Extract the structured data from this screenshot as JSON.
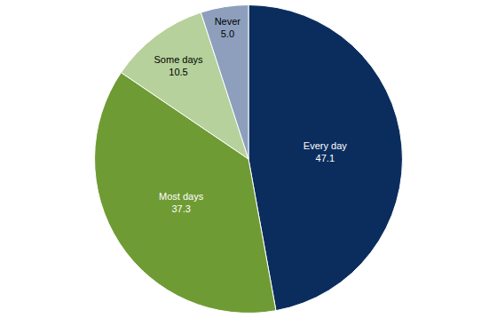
{
  "chart_data": {
    "type": "pie",
    "categories": [
      "Every day",
      "Most days",
      "Some days",
      "Never"
    ],
    "values": [
      47.1,
      37.3,
      10.5,
      5.0
    ],
    "value_labels": [
      "47.1",
      "37.3",
      "10.5",
      "5.0"
    ],
    "colors": [
      "#0b2d5e",
      "#6f9b34",
      "#b6d19b",
      "#8d9fbd"
    ],
    "data_labels": true
  }
}
